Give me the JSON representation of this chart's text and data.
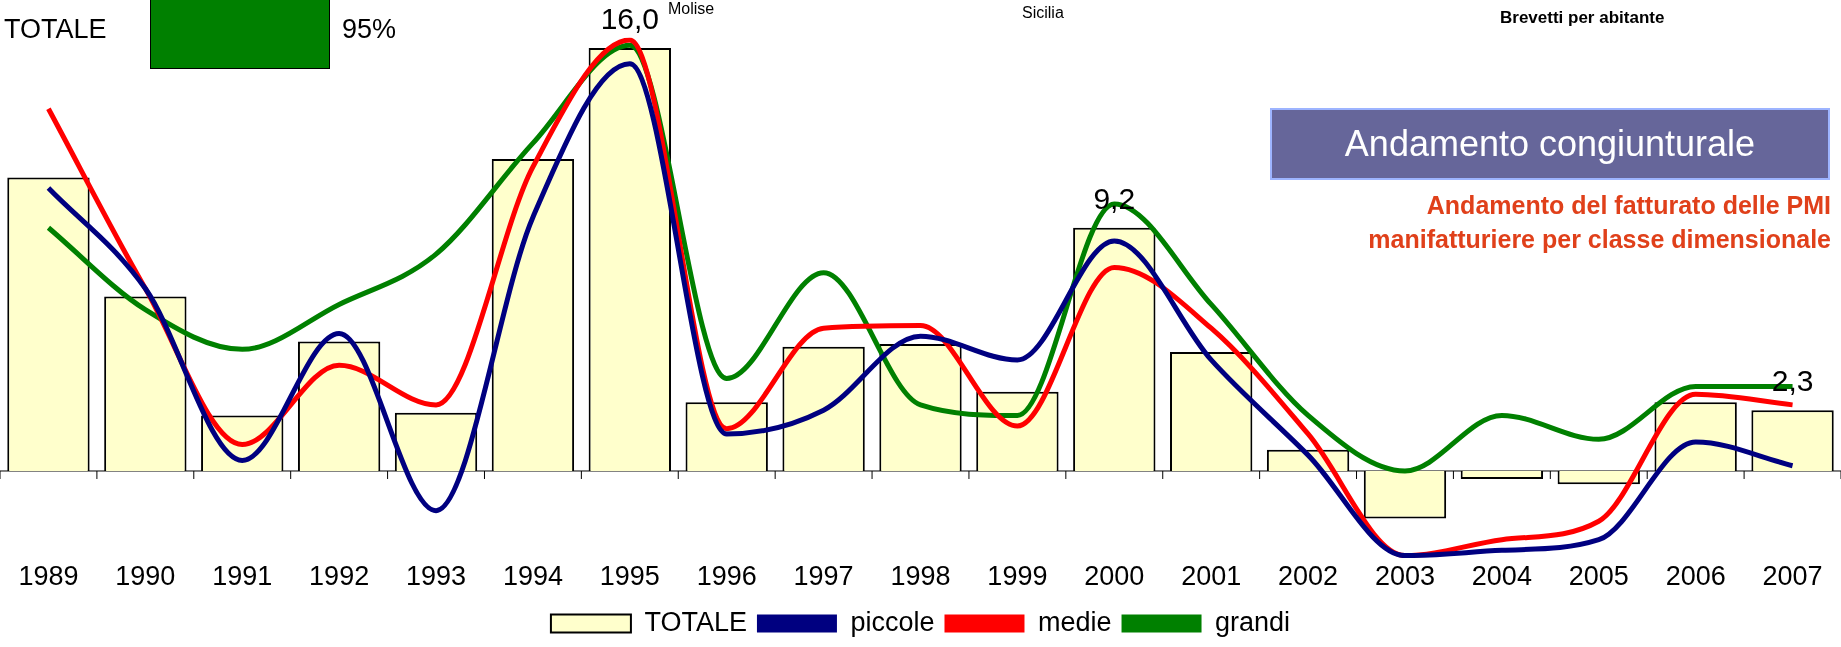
{
  "chart_data": {
    "type": "bar",
    "title": "Andamento congiunturale",
    "subtitle": "Andamento del fatturato delle PMI manifatturiere per classe dimensionale",
    "annotations": [
      "TOTALE",
      "95%",
      "Molise",
      "Sicilia",
      "Brevetti per abitante"
    ],
    "categories": [
      "1989",
      "1990",
      "1991",
      "1992",
      "1993",
      "1994",
      "1995",
      "1996",
      "1997",
      "1998",
      "1999",
      "2000",
      "2001",
      "2002",
      "2003",
      "2004",
      "2005",
      "2006",
      "2007"
    ],
    "series": [
      {
        "name": "TOTALE",
        "color": "#ffffcc",
        "values": [
          11.1,
          6.6,
          2.1,
          4.9,
          2.2,
          11.8,
          16.0,
          2.6,
          4.7,
          4.8,
          3.0,
          9.2,
          4.5,
          0.8,
          -1.8,
          -0.3,
          -0.5,
          2.6,
          2.3
        ],
        "value_labels": [
          null,
          null,
          null,
          null,
          null,
          null,
          "16,0",
          null,
          null,
          null,
          null,
          "9,2",
          null,
          null,
          null,
          null,
          null,
          null,
          "2,3"
        ]
      },
      {
        "name": "piccole",
        "type": "line",
        "color": "#000080",
        "values": [
          10.7,
          6.9,
          0.4,
          5.2,
          -1.5,
          9.6,
          15.4,
          1.4,
          2.3,
          5.1,
          4.2,
          8.7,
          4.2,
          0.6,
          -3.2,
          -3.0,
          -2.6,
          1.1,
          0.2
        ]
      },
      {
        "name": "medie",
        "type": "line",
        "color": "#ff0000",
        "values": [
          13.7,
          6.9,
          1.0,
          4.0,
          2.5,
          11.5,
          16.3,
          1.6,
          5.4,
          5.5,
          1.7,
          7.7,
          5.4,
          1.4,
          -3.2,
          -2.6,
          -1.9,
          2.9,
          2.5
        ]
      },
      {
        "name": "grandi",
        "type": "line",
        "color": "#008000",
        "values": [
          9.2,
          6.1,
          4.6,
          6.3,
          8.2,
          12.4,
          16.1,
          3.5,
          7.5,
          2.5,
          2.1,
          10.1,
          6.3,
          2.1,
          0.0,
          2.1,
          1.2,
          3.2,
          3.2
        ]
      }
    ],
    "legend": "bottom"
  }
}
